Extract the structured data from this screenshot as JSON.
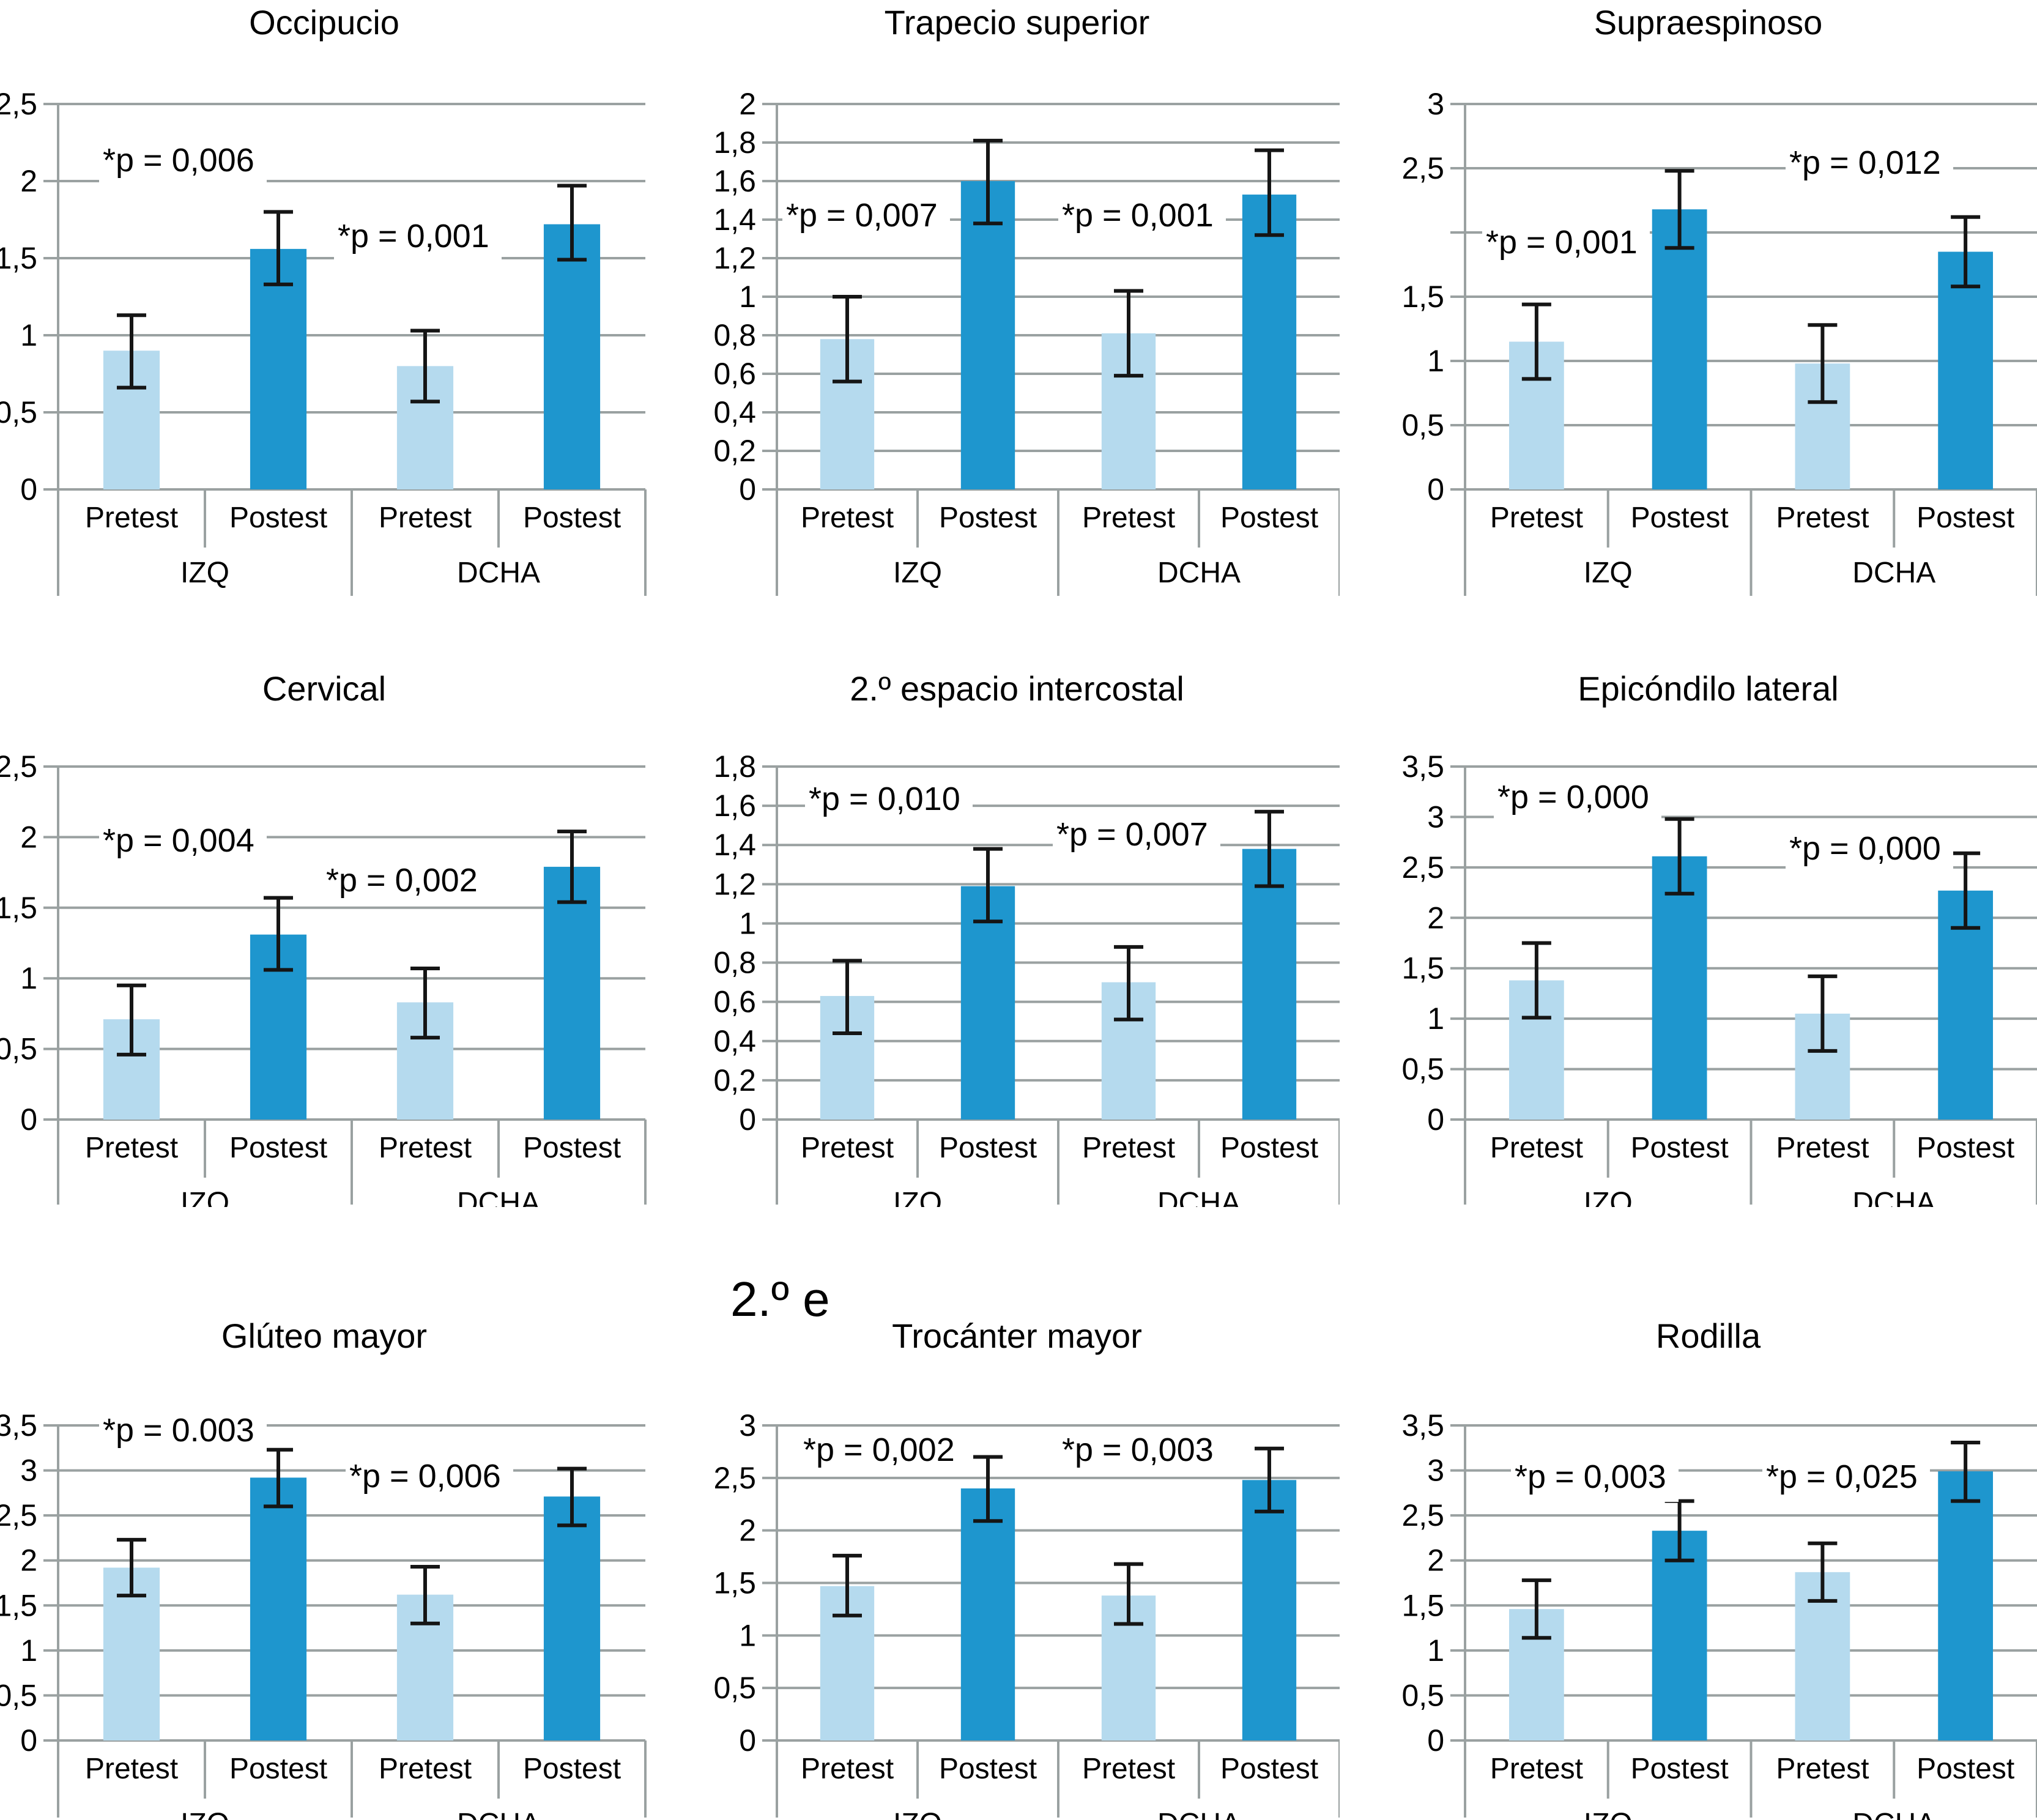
{
  "figure": {
    "background": "#ffffff",
    "colors": {
      "bar_pretest": "#B5DAEE",
      "bar_postest": "#1E96CE",
      "grid": "#9AA1A1",
      "axis": "#9AA1A1",
      "error_bar": "#151515",
      "text": "#000000"
    },
    "stray_text": "2.º e"
  },
  "chart_data": [
    {
      "type": "bar",
      "title": "Occipucio",
      "ylim": [
        0,
        2.5
      ],
      "yticks": [
        {
          "label": "2,5",
          "v": 2.5
        },
        {
          "label": "2",
          "v": 2
        },
        {
          "label": "1,5",
          "v": 1.5
        },
        {
          "label": "1",
          "v": 1
        },
        {
          "label": "0,5",
          "v": 0.5
        },
        {
          "label": "0",
          "v": 0
        }
      ],
      "bars": [
        {
          "group": "IZQ",
          "condition": "Pretest",
          "value": 0.9,
          "err_lo": 0.66,
          "err_hi": 1.13
        },
        {
          "group": "IZQ",
          "condition": "Postest",
          "value": 1.56,
          "err_lo": 1.33,
          "err_hi": 1.8
        },
        {
          "group": "DCHA",
          "condition": "Pretest",
          "value": 0.8,
          "err_lo": 0.57,
          "err_hi": 1.03
        },
        {
          "group": "DCHA",
          "condition": "Postest",
          "value": 1.72,
          "err_lo": 1.49,
          "err_hi": 1.97
        }
      ],
      "annotations": [
        {
          "text": "*p = 0,006",
          "x": 0.07,
          "v": 2.13
        },
        {
          "text": "*p = 0,001",
          "x": 0.47,
          "v": 1.64
        }
      ]
    },
    {
      "type": "bar",
      "title": "Trapecio superior",
      "ylim": [
        0,
        2
      ],
      "yticks": [
        {
          "label": "2",
          "v": 2
        },
        {
          "label": "1,8",
          "v": 1.8
        },
        {
          "label": "1,6",
          "v": 1.6
        },
        {
          "label": "1,4",
          "v": 1.4
        },
        {
          "label": "1,2",
          "v": 1.2
        },
        {
          "label": "1",
          "v": 1
        },
        {
          "label": "0,8",
          "v": 0.8
        },
        {
          "label": "0,6",
          "v": 0.6
        },
        {
          "label": "0,4",
          "v": 0.4
        },
        {
          "label": "0,2",
          "v": 0.2
        },
        {
          "label": "0",
          "v": 0
        }
      ],
      "bars": [
        {
          "group": "IZQ",
          "condition": "Pretest",
          "value": 0.78,
          "err_lo": 0.56,
          "err_hi": 1.0
        },
        {
          "group": "IZQ",
          "condition": "Postest",
          "value": 1.6,
          "err_lo": 1.38,
          "err_hi": 1.81
        },
        {
          "group": "DCHA",
          "condition": "Pretest",
          "value": 0.81,
          "err_lo": 0.59,
          "err_hi": 1.03
        },
        {
          "group": "DCHA",
          "condition": "Postest",
          "value": 1.53,
          "err_lo": 1.32,
          "err_hi": 1.76
        }
      ],
      "annotations": [
        {
          "text": "*p = 0,007",
          "x": 0.01,
          "v": 1.42
        },
        {
          "text": "*p = 0,001",
          "x": 0.5,
          "v": 1.42
        }
      ]
    },
    {
      "type": "bar",
      "title": "Supraespinoso",
      "ylim": [
        0,
        3
      ],
      "yticks": [
        {
          "label": "3",
          "v": 3
        },
        {
          "label": "2,5",
          "v": 2.5
        },
        {
          "label": "",
          "v": 2
        },
        {
          "label": "1,5",
          "v": 1.5
        },
        {
          "label": "1",
          "v": 1
        },
        {
          "label": "0,5",
          "v": 0.5
        },
        {
          "label": "0",
          "v": 0
        }
      ],
      "bars": [
        {
          "group": "IZQ",
          "condition": "Pretest",
          "value": 1.15,
          "err_lo": 0.86,
          "err_hi": 1.44
        },
        {
          "group": "IZQ",
          "condition": "Postest",
          "value": 2.18,
          "err_lo": 1.88,
          "err_hi": 2.48
        },
        {
          "group": "DCHA",
          "condition": "Pretest",
          "value": 0.98,
          "err_lo": 0.68,
          "err_hi": 1.28
        },
        {
          "group": "DCHA",
          "condition": "Postest",
          "value": 1.85,
          "err_lo": 1.58,
          "err_hi": 2.12
        }
      ],
      "annotations": [
        {
          "text": "*p = 0,001",
          "x": 0.03,
          "v": 1.92
        },
        {
          "text": "*p = 0,012",
          "x": 0.56,
          "v": 2.54
        }
      ]
    },
    {
      "type": "bar",
      "title": "Cervical",
      "ylim": [
        0,
        2.5
      ],
      "yticks": [
        {
          "label": "2,5",
          "v": 2.5
        },
        {
          "label": "2",
          "v": 2
        },
        {
          "label": "1,5",
          "v": 1.5
        },
        {
          "label": "1",
          "v": 1
        },
        {
          "label": "0,5",
          "v": 0.5
        },
        {
          "label": "0",
          "v": 0
        }
      ],
      "bars": [
        {
          "group": "IZQ",
          "condition": "Pretest",
          "value": 0.71,
          "err_lo": 0.46,
          "err_hi": 0.95
        },
        {
          "group": "IZQ",
          "condition": "Postest",
          "value": 1.31,
          "err_lo": 1.06,
          "err_hi": 1.57
        },
        {
          "group": "DCHA",
          "condition": "Pretest",
          "value": 0.83,
          "err_lo": 0.58,
          "err_hi": 1.07
        },
        {
          "group": "DCHA",
          "condition": "Postest",
          "value": 1.79,
          "err_lo": 1.54,
          "err_hi": 2.04
        }
      ],
      "annotations": [
        {
          "text": "*p = 0,004",
          "x": 0.07,
          "v": 1.97
        },
        {
          "text": "*p = 0,002",
          "x": 0.45,
          "v": 1.69
        }
      ]
    },
    {
      "type": "bar",
      "title": "2.º espacio intercostal",
      "ylim": [
        0,
        1.8
      ],
      "yticks": [
        {
          "label": "1,8",
          "v": 1.8
        },
        {
          "label": "1,6",
          "v": 1.6
        },
        {
          "label": "1,4",
          "v": 1.4
        },
        {
          "label": "1,2",
          "v": 1.2
        },
        {
          "label": "1",
          "v": 1
        },
        {
          "label": "0,8",
          "v": 0.8
        },
        {
          "label": "0,6",
          "v": 0.6
        },
        {
          "label": "0,4",
          "v": 0.4
        },
        {
          "label": "0,2",
          "v": 0.2
        },
        {
          "label": "0",
          "v": 0
        }
      ],
      "bars": [
        {
          "group": "IZQ",
          "condition": "Pretest",
          "value": 0.63,
          "err_lo": 0.44,
          "err_hi": 0.81
        },
        {
          "group": "IZQ",
          "condition": "Postest",
          "value": 1.19,
          "err_lo": 1.01,
          "err_hi": 1.38
        },
        {
          "group": "DCHA",
          "condition": "Pretest",
          "value": 0.7,
          "err_lo": 0.51,
          "err_hi": 0.88
        },
        {
          "group": "DCHA",
          "condition": "Postest",
          "value": 1.38,
          "err_lo": 1.19,
          "err_hi": 1.57
        }
      ],
      "annotations": [
        {
          "text": "*p = 0,010",
          "x": 0.05,
          "v": 1.63
        },
        {
          "text": "*p = 0,007",
          "x": 0.49,
          "v": 1.45
        }
      ]
    },
    {
      "type": "bar",
      "title": "Epicóndilo lateral",
      "ylim": [
        0,
        3.5
      ],
      "yticks": [
        {
          "label": "3,5",
          "v": 3.5
        },
        {
          "label": "3",
          "v": 3
        },
        {
          "label": "2,5",
          "v": 2.5
        },
        {
          "label": "2",
          "v": 2
        },
        {
          "label": "1,5",
          "v": 1.5
        },
        {
          "label": "1",
          "v": 1
        },
        {
          "label": "0,5",
          "v": 0.5
        },
        {
          "label": "0",
          "v": 0
        }
      ],
      "bars": [
        {
          "group": "IZQ",
          "condition": "Pretest",
          "value": 1.38,
          "err_lo": 1.01,
          "err_hi": 1.75
        },
        {
          "group": "IZQ",
          "condition": "Postest",
          "value": 2.61,
          "err_lo": 2.24,
          "err_hi": 2.98
        },
        {
          "group": "DCHA",
          "condition": "Pretest",
          "value": 1.05,
          "err_lo": 0.68,
          "err_hi": 1.42
        },
        {
          "group": "DCHA",
          "condition": "Postest",
          "value": 2.27,
          "err_lo": 1.9,
          "err_hi": 2.64
        }
      ],
      "annotations": [
        {
          "text": "*p = 0,000",
          "x": 0.05,
          "v": 3.19
        },
        {
          "text": "*p = 0,000",
          "x": 0.56,
          "v": 2.68
        }
      ]
    },
    {
      "type": "bar",
      "title": "Glúteo mayor",
      "ylim": [
        0,
        3.5
      ],
      "yticks": [
        {
          "label": "3,5",
          "v": 3.5
        },
        {
          "label": "3",
          "v": 3
        },
        {
          "label": "2,5",
          "v": 2.5
        },
        {
          "label": "2",
          "v": 2
        },
        {
          "label": "1,5",
          "v": 1.5
        },
        {
          "label": "1",
          "v": 1
        },
        {
          "label": "0,5",
          "v": 0.5
        },
        {
          "label": "0",
          "v": 0
        }
      ],
      "bars": [
        {
          "group": "IZQ",
          "condition": "Pretest",
          "value": 1.92,
          "err_lo": 1.61,
          "err_hi": 2.23
        },
        {
          "group": "IZQ",
          "condition": "Postest",
          "value": 2.92,
          "err_lo": 2.6,
          "err_hi": 3.23
        },
        {
          "group": "DCHA",
          "condition": "Pretest",
          "value": 1.62,
          "err_lo": 1.3,
          "err_hi": 1.93
        },
        {
          "group": "DCHA",
          "condition": "Postest",
          "value": 2.71,
          "err_lo": 2.39,
          "err_hi": 3.02
        }
      ],
      "annotations": [
        {
          "text": "*p = 0.003",
          "x": 0.07,
          "v": 3.44
        },
        {
          "text": "*p = 0,006",
          "x": 0.49,
          "v": 2.93
        }
      ]
    },
    {
      "type": "bar",
      "title": "Trocánter mayor",
      "ylim": [
        0,
        3
      ],
      "yticks": [
        {
          "label": "3",
          "v": 3
        },
        {
          "label": "2,5",
          "v": 2.5
        },
        {
          "label": "2",
          "v": 2
        },
        {
          "label": "1,5",
          "v": 1.5
        },
        {
          "label": "1",
          "v": 1
        },
        {
          "label": "0,5",
          "v": 0.5
        },
        {
          "label": "0",
          "v": 0
        }
      ],
      "bars": [
        {
          "group": "IZQ",
          "condition": "Pretest",
          "value": 1.47,
          "err_lo": 1.19,
          "err_hi": 1.76
        },
        {
          "group": "IZQ",
          "condition": "Postest",
          "value": 2.4,
          "err_lo": 2.09,
          "err_hi": 2.7
        },
        {
          "group": "DCHA",
          "condition": "Pretest",
          "value": 1.38,
          "err_lo": 1.11,
          "err_hi": 1.68
        },
        {
          "group": "DCHA",
          "condition": "Postest",
          "value": 2.48,
          "err_lo": 2.18,
          "err_hi": 2.78
        }
      ],
      "annotations": [
        {
          "text": "*p = 0,002",
          "x": 0.04,
          "v": 2.76
        },
        {
          "text": "*p = 0,003",
          "x": 0.5,
          "v": 2.76
        }
      ]
    },
    {
      "type": "bar",
      "title": "Rodilla",
      "ylim": [
        0,
        3.5
      ],
      "yticks": [
        {
          "label": "3,5",
          "v": 3.5
        },
        {
          "label": "3",
          "v": 3
        },
        {
          "label": "2,5",
          "v": 2.5
        },
        {
          "label": "2",
          "v": 2
        },
        {
          "label": "1,5",
          "v": 1.5
        },
        {
          "label": "1",
          "v": 1
        },
        {
          "label": "0,5",
          "v": 0.5
        },
        {
          "label": "0",
          "v": 0
        }
      ],
      "bars": [
        {
          "group": "IZQ",
          "condition": "Pretest",
          "value": 1.46,
          "err_lo": 1.14,
          "err_hi": 1.78
        },
        {
          "group": "IZQ",
          "condition": "Postest",
          "value": 2.33,
          "err_lo": 2.0,
          "err_hi": 2.66
        },
        {
          "group": "DCHA",
          "condition": "Pretest",
          "value": 1.87,
          "err_lo": 1.55,
          "err_hi": 2.19
        },
        {
          "group": "DCHA",
          "condition": "Postest",
          "value": 2.99,
          "err_lo": 2.66,
          "err_hi": 3.31
        }
      ],
      "annotations": [
        {
          "text": "*p = 0,003",
          "x": 0.08,
          "v": 2.92
        },
        {
          "text": "*p = 0,025",
          "x": 0.52,
          "v": 2.92
        }
      ]
    }
  ]
}
